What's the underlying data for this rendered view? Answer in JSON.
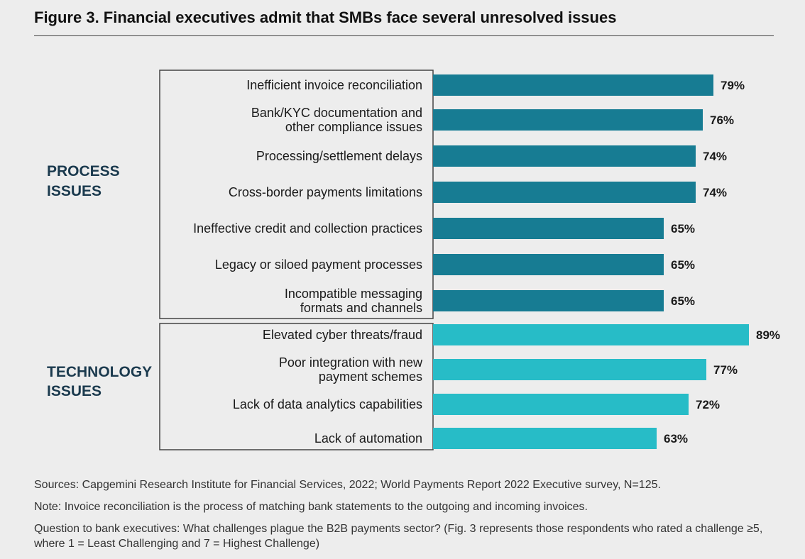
{
  "title": "Figure 3. Financial executives admit that SMBs face several unresolved issues",
  "colors": {
    "process": "#177c93",
    "technology": "#27bcc7",
    "group_label": "#1b3a4e",
    "box_border": "#444444"
  },
  "chart_data": {
    "type": "bar",
    "orientation": "horizontal",
    "title": "Figure 3. Financial executives admit that SMBs face several unresolved issues",
    "unit": "%",
    "xlim": [
      0,
      100
    ],
    "groups": [
      {
        "name": "PROCESS ISSUES",
        "label_lines": [
          "PROCESS",
          "ISSUES"
        ],
        "color": "#177c93",
        "items": [
          {
            "label_lines": [
              "Inefficient invoice reconciliation"
            ],
            "value": 79,
            "value_label": "79%"
          },
          {
            "label_lines": [
              "Bank/KYC documentation and",
              "other compliance issues"
            ],
            "value": 76,
            "value_label": "76%"
          },
          {
            "label_lines": [
              "Processing/settlement delays"
            ],
            "value": 74,
            "value_label": "74%"
          },
          {
            "label_lines": [
              "Cross-border payments limitations"
            ],
            "value": 74,
            "value_label": "74%"
          },
          {
            "label_lines": [
              "Ineffective credit and collection practices"
            ],
            "value": 65,
            "value_label": "65%"
          },
          {
            "label_lines": [
              "Legacy or siloed payment processes"
            ],
            "value": 65,
            "value_label": "65%"
          },
          {
            "label_lines": [
              "Incompatible messaging",
              "formats and channels"
            ],
            "value": 65,
            "value_label": "65%"
          }
        ]
      },
      {
        "name": "TECHNOLOGY ISSUES",
        "label_lines": [
          "TECHNOLOGY",
          "ISSUES"
        ],
        "color": "#27bcc7",
        "items": [
          {
            "label_lines": [
              "Elevated cyber threats/fraud"
            ],
            "value": 89,
            "value_label": "89%"
          },
          {
            "label_lines": [
              "Poor integration with new",
              "payment schemes"
            ],
            "value": 77,
            "value_label": "77%"
          },
          {
            "label_lines": [
              "Lack of data analytics capabilities"
            ],
            "value": 72,
            "value_label": "72%"
          },
          {
            "label_lines": [
              "Lack of automation"
            ],
            "value": 63,
            "value_label": "63%"
          }
        ]
      }
    ]
  },
  "footer": {
    "sources": "Sources: Capgemini Research Institute for Financial Services, 2022; World Payments Report 2022 Executive survey, N=125.",
    "note": "Note: Invoice reconciliation is the process of matching bank statements to the outgoing and incoming invoices.",
    "question": "Question to bank executives: What challenges plague the B2B payments sector? (Fig. 3 represents those respondents who rated a challenge ≥5, where 1 = Least Challenging and 7 = Highest Challenge)"
  }
}
